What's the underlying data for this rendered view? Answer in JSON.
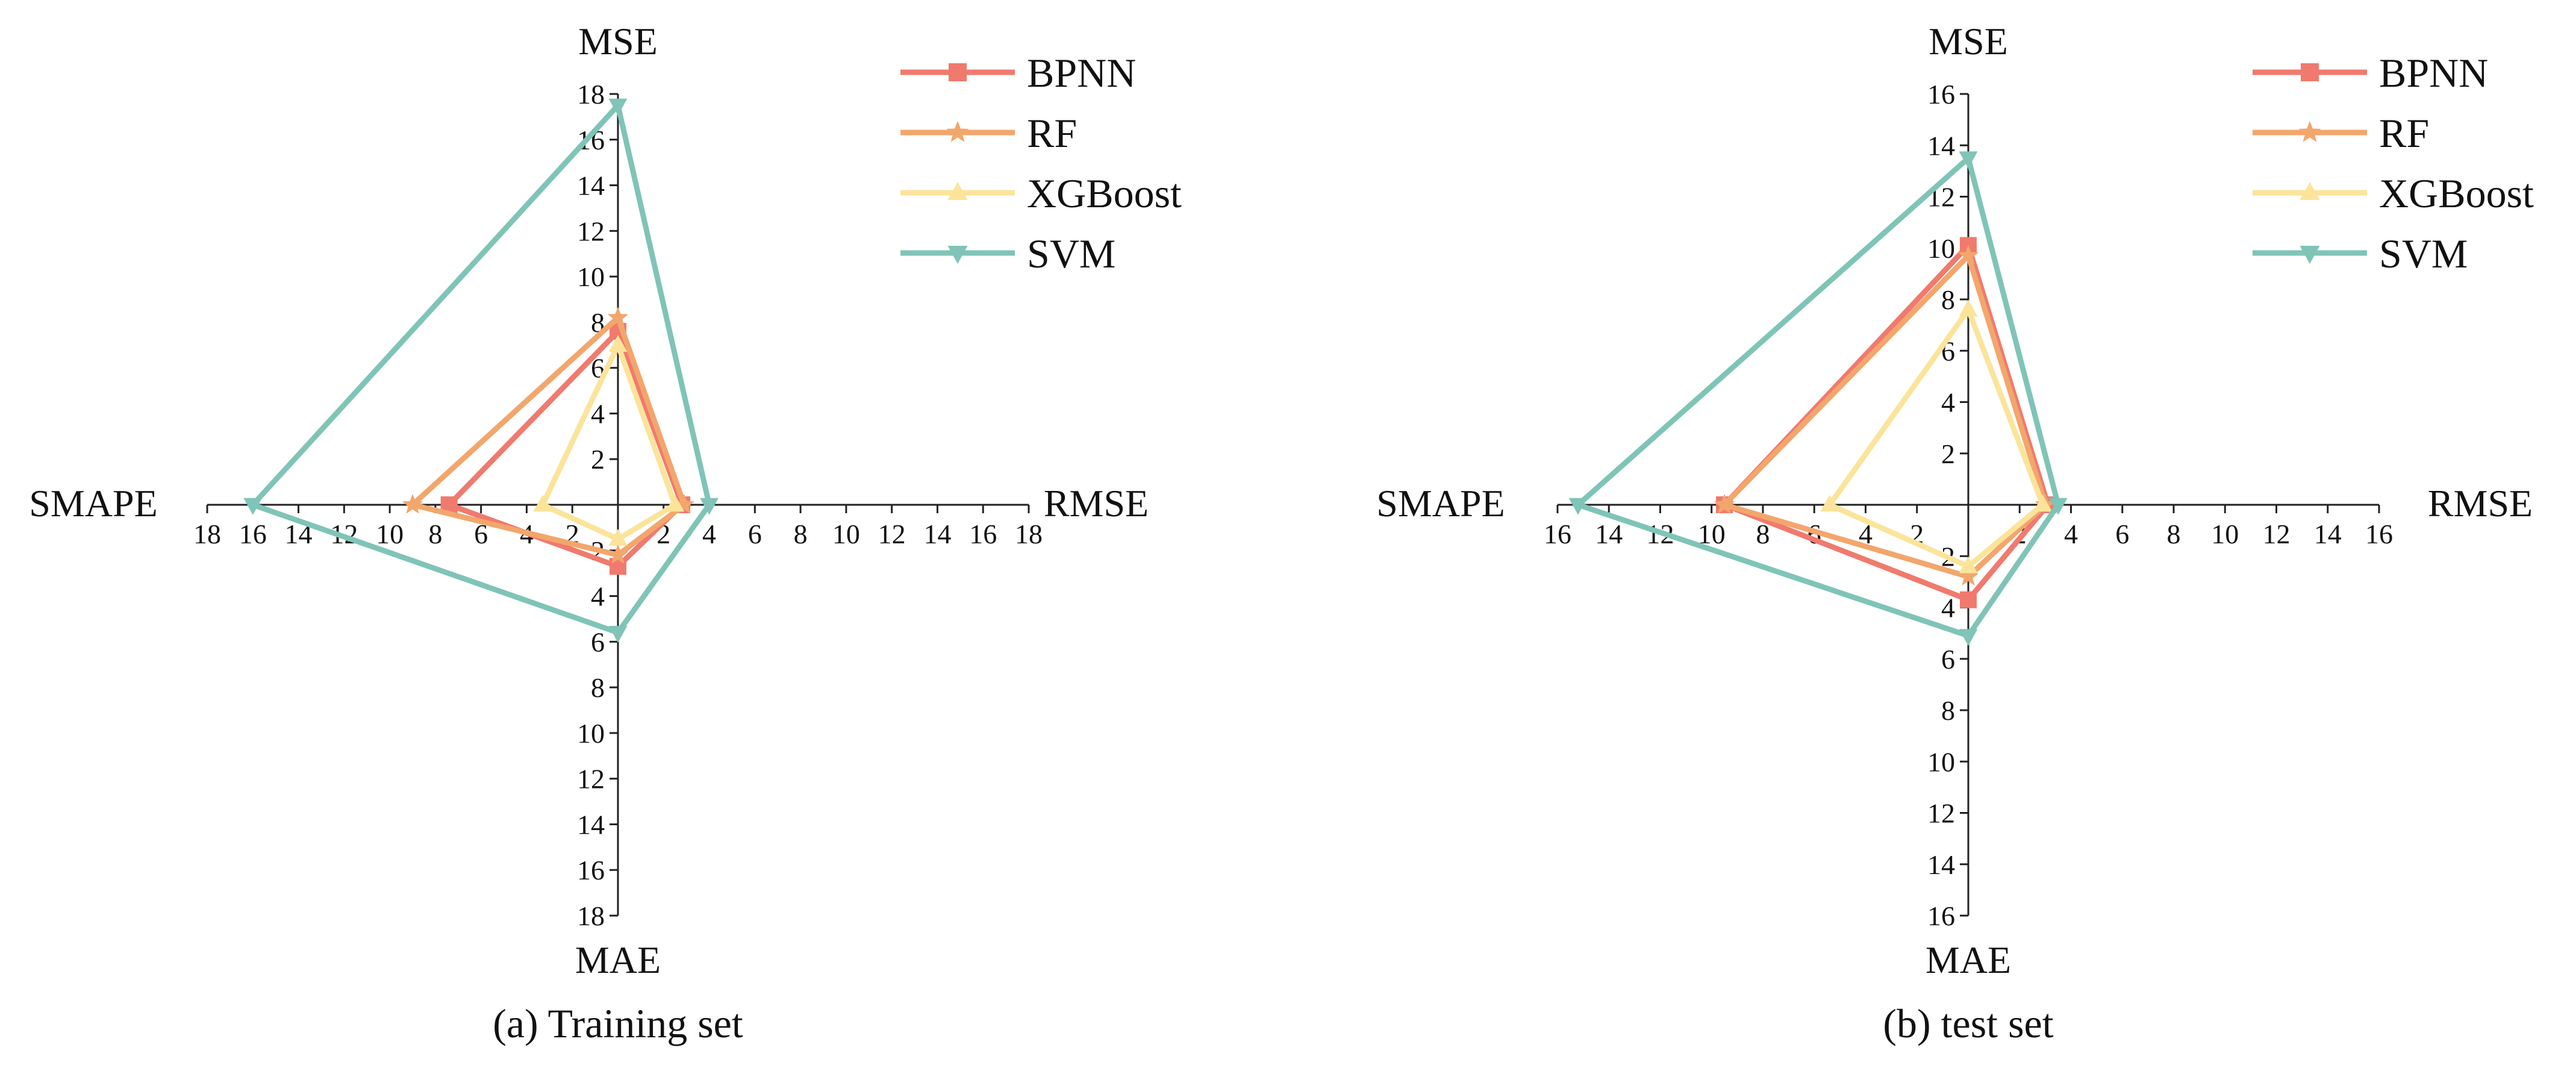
{
  "colors": {
    "BPNN": "#f07a6e",
    "RF": "#f3a66c",
    "XGBoost": "#fbe49a",
    "SVM": "#7fc4b7",
    "axis": "#222222"
  },
  "chart_data": [
    {
      "type": "radar",
      "caption": "(a) Training set",
      "axes": [
        "MSE",
        "RMSE",
        "MAE",
        "SMAPE"
      ],
      "axis_max": 18,
      "ticks": [
        "2",
        "4",
        "6",
        "8",
        "10",
        "12",
        "14",
        "16",
        "18"
      ],
      "legend_position": "top-right",
      "series": [
        {
          "name": "BPNN",
          "marker": "square",
          "values": [
            7.6,
            2.8,
            2.7,
            7.4
          ]
        },
        {
          "name": "RF",
          "marker": "star",
          "values": [
            8.2,
            2.9,
            2.2,
            9.0
          ]
        },
        {
          "name": "XGBoost",
          "marker": "triangle-up",
          "values": [
            7.0,
            2.5,
            1.5,
            3.3
          ]
        },
        {
          "name": "SVM",
          "marker": "triangle-down",
          "values": [
            17.5,
            4.0,
            5.6,
            16.0
          ]
        }
      ]
    },
    {
      "type": "radar",
      "caption": "(b) test set",
      "axes": [
        "MSE",
        "RMSE",
        "MAE",
        "SMAPE"
      ],
      "axis_max": 16,
      "ticks": [
        "2",
        "4",
        "6",
        "8",
        "10",
        "12",
        "14",
        "16"
      ],
      "legend_position": "top-right",
      "series": [
        {
          "name": "BPNN",
          "marker": "square",
          "values": [
            10.1,
            3.1,
            3.7,
            9.5
          ]
        },
        {
          "name": "RF",
          "marker": "star",
          "values": [
            9.7,
            3.0,
            2.8,
            9.5
          ]
        },
        {
          "name": "XGBoost",
          "marker": "triangle-up",
          "values": [
            7.6,
            2.9,
            2.4,
            5.4
          ]
        },
        {
          "name": "SVM",
          "marker": "triangle-down",
          "values": [
            13.5,
            3.5,
            5.1,
            15.2
          ]
        }
      ]
    }
  ]
}
